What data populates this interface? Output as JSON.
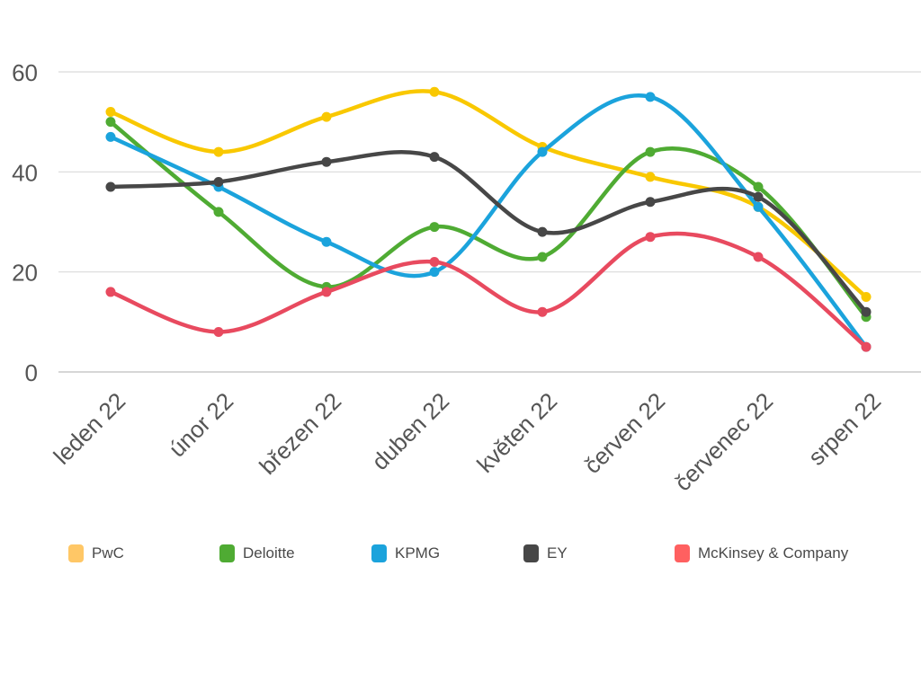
{
  "chart_data": {
    "type": "line",
    "title": "",
    "xlabel": "",
    "ylabel": "",
    "categories": [
      "leden 22",
      "únor 22",
      "březen 22",
      "duben 22",
      "květen 22",
      "červen 22",
      "červenec 22",
      "srpen 22"
    ],
    "ylim": [
      0,
      60
    ],
    "yticks": [
      "0",
      "20",
      "40",
      "60"
    ],
    "grid": true,
    "legend_position": "bottom",
    "series": [
      {
        "name": "PwC",
        "color": "#f9c800",
        "legend_color": "#ffc766",
        "values": [
          52,
          44,
          51,
          56,
          45,
          39,
          33,
          15
        ]
      },
      {
        "name": "Deloitte",
        "color": "#4fab33",
        "legend_color": "#4fab33",
        "values": [
          50,
          32,
          17,
          29,
          23,
          44,
          37,
          11
        ]
      },
      {
        "name": "KPMG",
        "color": "#1ba3dc",
        "legend_color": "#1ba3dc",
        "values": [
          47,
          37,
          26,
          20,
          44,
          55,
          33,
          5
        ]
      },
      {
        "name": "EY",
        "color": "#474747",
        "legend_color": "#474747",
        "values": [
          37,
          38,
          42,
          43,
          28,
          34,
          35,
          12
        ]
      },
      {
        "name": "McKinsey & Company",
        "color": "#e84a5f",
        "legend_color": "#ff6060",
        "values": [
          16,
          8,
          16,
          22,
          12,
          27,
          23,
          5
        ]
      }
    ]
  }
}
